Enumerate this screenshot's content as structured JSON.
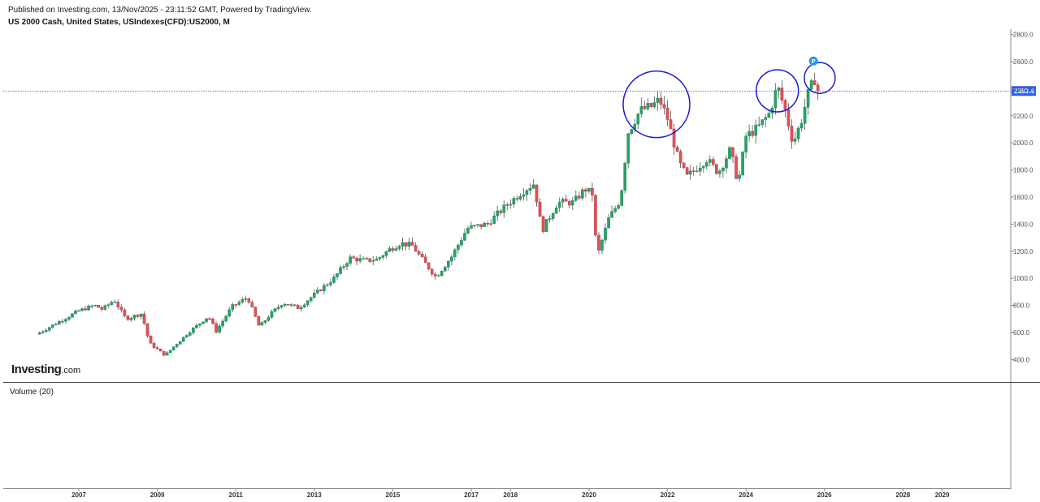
{
  "header": {
    "published": "Published on Investing.com, 13/Nov/2025 - 23:11:52 GMT, Powered by TradingView.",
    "symbol": "US 2000 Cash, United States, USIndexes(CFD):US2000, M"
  },
  "logo": {
    "main": "Investing",
    "suffix": ".com"
  },
  "volume_label": "Volume (20)",
  "marker_label": "P",
  "colors": {
    "up": "#26a269",
    "down": "#e0525a",
    "wick": "#555555",
    "price_line": "#2a4fd6",
    "circle": "#1a1adc",
    "price_badge": "#2962ff"
  },
  "chart_data": {
    "type": "candlestick",
    "interval": "monthly",
    "ylim": [
      240,
      2840
    ],
    "y_ticks": [
      "400.0",
      "600.0",
      "800.0",
      "1000.0",
      "1200.0",
      "1400.0",
      "1600.0",
      "1800.0",
      "2000.0",
      "2200.0",
      "2400.0",
      "2600.0",
      "2800.0"
    ],
    "x_ticks": [
      "2007",
      "2009",
      "2011",
      "2013",
      "2015",
      "2017",
      "2018",
      "2020",
      "2022",
      "2024",
      "2026",
      "2028",
      "2029"
    ],
    "last_price": "2383.4",
    "close_path": [
      [
        2006.0,
        598
      ],
      [
        2006.5,
        680
      ],
      [
        2007.0,
        760
      ],
      [
        2007.4,
        800
      ],
      [
        2007.6,
        770
      ],
      [
        2007.9,
        840
      ],
      [
        2008.2,
        700
      ],
      [
        2008.6,
        740
      ],
      [
        2008.8,
        520
      ],
      [
        2009.2,
        430
      ],
      [
        2009.4,
        490
      ],
      [
        2009.8,
        600
      ],
      [
        2010.3,
        720
      ],
      [
        2010.5,
        610
      ],
      [
        2010.9,
        790
      ],
      [
        2011.3,
        860
      ],
      [
        2011.6,
        640
      ],
      [
        2011.9,
        740
      ],
      [
        2012.2,
        820
      ],
      [
        2012.6,
        780
      ],
      [
        2013.0,
        880
      ],
      [
        2013.5,
        1000
      ],
      [
        2013.9,
        1150
      ],
      [
        2014.3,
        1130
      ],
      [
        2014.6,
        1140
      ],
      [
        2014.9,
        1210
      ],
      [
        2015.2,
        1260
      ],
      [
        2015.5,
        1240
      ],
      [
        2015.8,
        1120
      ],
      [
        2016.1,
        1010
      ],
      [
        2016.5,
        1160
      ],
      [
        2016.9,
        1370
      ],
      [
        2017.4,
        1400
      ],
      [
        2017.9,
        1540
      ],
      [
        2018.3,
        1640
      ],
      [
        2018.6,
        1700
      ],
      [
        2018.8,
        1350
      ],
      [
        2019.2,
        1560
      ],
      [
        2019.6,
        1560
      ],
      [
        2019.9,
        1660
      ],
      [
        2020.1,
        1620
      ],
      [
        2020.2,
        1150
      ],
      [
        2020.5,
        1440
      ],
      [
        2020.8,
        1580
      ],
      [
        2021.0,
        2080
      ],
      [
        2021.3,
        2240
      ],
      [
        2021.6,
        2270
      ],
      [
        2021.8,
        2320
      ],
      [
        2022.0,
        2180
      ],
      [
        2022.3,
        1850
      ],
      [
        2022.5,
        1750
      ],
      [
        2022.8,
        1830
      ],
      [
        2023.0,
        1880
      ],
      [
        2023.3,
        1780
      ],
      [
        2023.6,
        1950
      ],
      [
        2023.8,
        1700
      ],
      [
        2024.0,
        2050
      ],
      [
        2024.3,
        2110
      ],
      [
        2024.6,
        2220
      ],
      [
        2024.8,
        2420
      ],
      [
        2025.0,
        2240
      ],
      [
        2025.2,
        2000
      ],
      [
        2025.4,
        2150
      ],
      [
        2025.6,
        2380
      ],
      [
        2025.75,
        2470
      ],
      [
        2025.87,
        2383.4
      ]
    ]
  }
}
